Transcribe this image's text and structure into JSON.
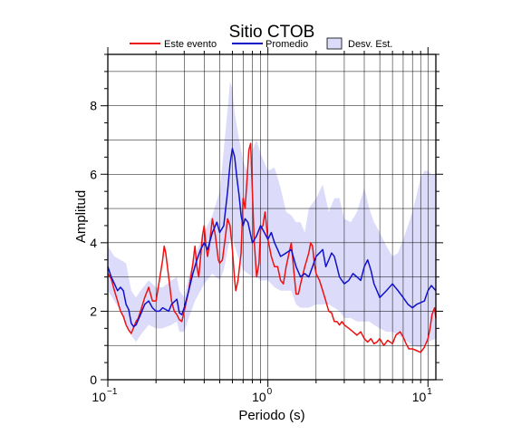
{
  "colors": {
    "event": "#ee1111",
    "mean": "#1111cc",
    "band_fill": "#dcdcfa",
    "grid": "#000000",
    "background": "#ffffff"
  },
  "chart_data": {
    "type": "line",
    "title": "Sitio CTOB",
    "xlabel": "Periodo (s)",
    "ylabel": "Amplitud",
    "x_scale": "log",
    "xlim": [
      0.1,
      11.2
    ],
    "ylim": [
      0,
      9.5
    ],
    "x_ticks": [
      {
        "value": 0.1,
        "base": "10",
        "exp": "−1"
      },
      {
        "value": 1,
        "base": "10",
        "exp": "0"
      },
      {
        "value": 10,
        "base": "10",
        "exp": "1"
      }
    ],
    "y_ticks": [
      0,
      2,
      4,
      6,
      8
    ],
    "y_tick_labels": [
      "0",
      "2",
      "4",
      "6",
      "8"
    ],
    "grid": true,
    "legend_position": "top",
    "legend": [
      {
        "label": "Este evento",
        "kind": "line",
        "color": "#ee1111"
      },
      {
        "label": "Promedio",
        "kind": "line",
        "color": "#1111cc"
      },
      {
        "label": "Desv. Est.",
        "kind": "box",
        "color": "#dcdcfa"
      }
    ],
    "series": [
      {
        "name": "Este evento",
        "color": "#ee1111",
        "points": [
          [
            0.1,
            3.1
          ],
          [
            0.105,
            2.95
          ],
          [
            0.11,
            2.6
          ],
          [
            0.115,
            2.3
          ],
          [
            0.12,
            2.0
          ],
          [
            0.125,
            1.85
          ],
          [
            0.13,
            1.6
          ],
          [
            0.135,
            1.45
          ],
          [
            0.14,
            1.35
          ],
          [
            0.15,
            1.7
          ],
          [
            0.155,
            1.8
          ],
          [
            0.16,
            2.0
          ],
          [
            0.17,
            2.4
          ],
          [
            0.18,
            2.7
          ],
          [
            0.19,
            2.3
          ],
          [
            0.2,
            2.3
          ],
          [
            0.21,
            2.9
          ],
          [
            0.22,
            3.5
          ],
          [
            0.225,
            3.9
          ],
          [
            0.23,
            3.7
          ],
          [
            0.24,
            3.0
          ],
          [
            0.25,
            2.3
          ],
          [
            0.26,
            2.0
          ],
          [
            0.27,
            1.9
          ],
          [
            0.28,
            1.75
          ],
          [
            0.29,
            1.7
          ],
          [
            0.3,
            2.0
          ],
          [
            0.32,
            2.6
          ],
          [
            0.34,
            3.4
          ],
          [
            0.35,
            3.9
          ],
          [
            0.36,
            3.3
          ],
          [
            0.37,
            3.0
          ],
          [
            0.38,
            3.6
          ],
          [
            0.39,
            4.2
          ],
          [
            0.4,
            4.5
          ],
          [
            0.41,
            3.9
          ],
          [
            0.42,
            3.6
          ],
          [
            0.43,
            3.9
          ],
          [
            0.45,
            4.7
          ],
          [
            0.47,
            4.2
          ],
          [
            0.49,
            3.5
          ],
          [
            0.5,
            3.4
          ],
          [
            0.52,
            3.5
          ],
          [
            0.54,
            4.1
          ],
          [
            0.56,
            4.7
          ],
          [
            0.58,
            4.5
          ],
          [
            0.6,
            3.8
          ],
          [
            0.62,
            2.9
          ],
          [
            0.63,
            2.6
          ],
          [
            0.65,
            2.9
          ],
          [
            0.68,
            3.7
          ],
          [
            0.7,
            5.3
          ],
          [
            0.72,
            5.0
          ],
          [
            0.74,
            5.8
          ],
          [
            0.76,
            6.7
          ],
          [
            0.78,
            6.9
          ],
          [
            0.8,
            5.5
          ],
          [
            0.82,
            4.1
          ],
          [
            0.85,
            3.0
          ],
          [
            0.88,
            3.4
          ],
          [
            0.9,
            4.4
          ],
          [
            0.93,
            4.5
          ],
          [
            0.96,
            4.9
          ],
          [
            1.0,
            4.1
          ],
          [
            1.05,
            3.6
          ],
          [
            1.1,
            3.3
          ],
          [
            1.15,
            3.3
          ],
          [
            1.2,
            2.9
          ],
          [
            1.25,
            2.8
          ],
          [
            1.3,
            3.3
          ],
          [
            1.4,
            4.0
          ],
          [
            1.45,
            3.2
          ],
          [
            1.5,
            2.5
          ],
          [
            1.55,
            2.5
          ],
          [
            1.6,
            2.8
          ],
          [
            1.7,
            3.3
          ],
          [
            1.8,
            3.7
          ],
          [
            1.85,
            4.0
          ],
          [
            1.9,
            3.9
          ],
          [
            1.95,
            3.4
          ],
          [
            2.0,
            3.1
          ],
          [
            2.1,
            2.9
          ],
          [
            2.2,
            2.6
          ],
          [
            2.3,
            2.3
          ],
          [
            2.4,
            2.0
          ],
          [
            2.5,
            1.95
          ],
          [
            2.6,
            1.7
          ],
          [
            2.7,
            1.7
          ],
          [
            2.8,
            1.6
          ],
          [
            2.9,
            1.7
          ],
          [
            3.0,
            1.6
          ],
          [
            3.2,
            1.5
          ],
          [
            3.4,
            1.4
          ],
          [
            3.6,
            1.3
          ],
          [
            3.8,
            1.4
          ],
          [
            4.0,
            1.2
          ],
          [
            4.2,
            1.1
          ],
          [
            4.4,
            1.2
          ],
          [
            4.6,
            1.05
          ],
          [
            4.8,
            1.1
          ],
          [
            5.0,
            1.2
          ],
          [
            5.3,
            1.0
          ],
          [
            5.6,
            1.15
          ],
          [
            6.0,
            1.05
          ],
          [
            6.3,
            1.3
          ],
          [
            6.7,
            1.4
          ],
          [
            7.0,
            1.25
          ],
          [
            7.3,
            1.05
          ],
          [
            7.6,
            0.9
          ],
          [
            8.0,
            0.9
          ],
          [
            8.5,
            0.85
          ],
          [
            9.0,
            0.8
          ],
          [
            9.5,
            0.95
          ],
          [
            10.0,
            1.2
          ],
          [
            10.3,
            1.5
          ],
          [
            10.6,
            1.9
          ],
          [
            11.0,
            2.1
          ],
          [
            11.2,
            1.8
          ]
        ]
      },
      {
        "name": "Promedio",
        "color": "#1111cc",
        "points": [
          [
            0.1,
            3.3
          ],
          [
            0.105,
            3.0
          ],
          [
            0.11,
            2.8
          ],
          [
            0.115,
            2.6
          ],
          [
            0.12,
            2.7
          ],
          [
            0.125,
            2.6
          ],
          [
            0.13,
            2.2
          ],
          [
            0.135,
            2.05
          ],
          [
            0.14,
            1.65
          ],
          [
            0.145,
            1.55
          ],
          [
            0.15,
            1.6
          ],
          [
            0.16,
            1.9
          ],
          [
            0.17,
            2.2
          ],
          [
            0.18,
            2.3
          ],
          [
            0.19,
            2.1
          ],
          [
            0.2,
            2.0
          ],
          [
            0.21,
            2.0
          ],
          [
            0.22,
            2.1
          ],
          [
            0.23,
            2.05
          ],
          [
            0.24,
            2.0
          ],
          [
            0.25,
            2.2
          ],
          [
            0.27,
            2.35
          ],
          [
            0.28,
            1.95
          ],
          [
            0.29,
            1.9
          ],
          [
            0.3,
            2.1
          ],
          [
            0.32,
            2.6
          ],
          [
            0.34,
            3.1
          ],
          [
            0.36,
            3.5
          ],
          [
            0.38,
            3.8
          ],
          [
            0.4,
            4.0
          ],
          [
            0.42,
            3.8
          ],
          [
            0.45,
            4.3
          ],
          [
            0.48,
            4.6
          ],
          [
            0.5,
            4.3
          ],
          [
            0.53,
            4.5
          ],
          [
            0.56,
            5.5
          ],
          [
            0.58,
            6.3
          ],
          [
            0.6,
            6.75
          ],
          [
            0.62,
            6.5
          ],
          [
            0.64,
            5.9
          ],
          [
            0.66,
            5.4
          ],
          [
            0.68,
            4.8
          ],
          [
            0.7,
            4.5
          ],
          [
            0.72,
            4.7
          ],
          [
            0.75,
            4.6
          ],
          [
            0.8,
            4.0
          ],
          [
            0.85,
            4.2
          ],
          [
            0.9,
            4.5
          ],
          [
            0.95,
            4.3
          ],
          [
            1.0,
            4.1
          ],
          [
            1.05,
            4.3
          ],
          [
            1.1,
            4.0
          ],
          [
            1.15,
            3.8
          ],
          [
            1.2,
            3.6
          ],
          [
            1.3,
            3.7
          ],
          [
            1.4,
            3.8
          ],
          [
            1.5,
            3.3
          ],
          [
            1.6,
            3.0
          ],
          [
            1.7,
            3.1
          ],
          [
            1.8,
            3.0
          ],
          [
            1.9,
            3.3
          ],
          [
            2.0,
            3.6
          ],
          [
            2.1,
            3.7
          ],
          [
            2.2,
            3.8
          ],
          [
            2.3,
            3.3
          ],
          [
            2.4,
            3.5
          ],
          [
            2.5,
            3.7
          ],
          [
            2.6,
            3.6
          ],
          [
            2.7,
            3.3
          ],
          [
            2.8,
            3.0
          ],
          [
            3.0,
            2.8
          ],
          [
            3.2,
            2.9
          ],
          [
            3.4,
            3.1
          ],
          [
            3.6,
            3.0
          ],
          [
            3.8,
            2.9
          ],
          [
            4.0,
            3.3
          ],
          [
            4.2,
            3.5
          ],
          [
            4.4,
            3.2
          ],
          [
            4.6,
            2.8
          ],
          [
            4.8,
            2.6
          ],
          [
            5.0,
            2.4
          ],
          [
            5.5,
            2.6
          ],
          [
            6.0,
            2.8
          ],
          [
            6.5,
            2.6
          ],
          [
            7.0,
            2.4
          ],
          [
            7.5,
            2.2
          ],
          [
            8.0,
            2.1
          ],
          [
            8.5,
            2.2
          ],
          [
            9.0,
            2.25
          ],
          [
            9.5,
            2.3
          ],
          [
            10.0,
            2.6
          ],
          [
            10.5,
            2.75
          ],
          [
            11.2,
            2.6
          ]
        ]
      }
    ],
    "band": {
      "name": "Desv. Est.",
      "x": [
        0.1,
        0.11,
        0.12,
        0.13,
        0.14,
        0.15,
        0.16,
        0.18,
        0.2,
        0.22,
        0.25,
        0.27,
        0.28,
        0.3,
        0.32,
        0.35,
        0.4,
        0.45,
        0.5,
        0.53,
        0.56,
        0.58,
        0.6,
        0.62,
        0.65,
        0.7,
        0.75,
        0.8,
        0.85,
        0.9,
        1.0,
        1.1,
        1.2,
        1.3,
        1.4,
        1.5,
        1.6,
        1.7,
        1.8,
        2.0,
        2.2,
        2.4,
        2.6,
        2.8,
        3.0,
        3.3,
        3.6,
        4.0,
        4.3,
        4.6,
        5.0,
        5.5,
        6.0,
        6.5,
        7.0,
        7.5,
        8.0,
        8.5,
        9.0,
        9.5,
        10.0,
        10.5,
        11.2
      ],
      "upper": [
        3.9,
        3.6,
        3.5,
        3.4,
        2.6,
        2.4,
        2.6,
        2.9,
        2.7,
        2.7,
        2.9,
        3.0,
        2.6,
        2.4,
        3.0,
        3.6,
        4.3,
        4.8,
        5.5,
        6.7,
        7.9,
        8.7,
        8.5,
        7.8,
        7.2,
        6.4,
        6.0,
        6.7,
        7.0,
        6.6,
        6.1,
        6.2,
        5.6,
        4.9,
        4.8,
        4.6,
        4.6,
        4.3,
        5.0,
        5.3,
        5.7,
        4.9,
        5.3,
        5.3,
        4.7,
        4.6,
        4.9,
        5.6,
        5.0,
        4.6,
        4.3,
        3.9,
        3.6,
        3.7,
        4.1,
        4.5,
        4.9,
        5.4,
        5.9,
        6.1,
        6.1,
        6.0,
        6.0
      ],
      "lower": [
        2.6,
        2.3,
        2.0,
        1.6,
        1.3,
        1.1,
        1.3,
        1.6,
        1.5,
        1.5,
        1.6,
        1.7,
        1.4,
        1.4,
        1.8,
        2.3,
        2.8,
        3.1,
        2.9,
        3.2,
        3.8,
        4.1,
        4.2,
        3.9,
        3.6,
        3.2,
        3.1,
        3.0,
        3.0,
        2.9,
        2.9,
        2.7,
        2.6,
        2.6,
        2.6,
        2.2,
        2.1,
        2.1,
        2.1,
        2.2,
        2.2,
        2.2,
        2.1,
        2.0,
        1.8,
        1.8,
        1.7,
        1.7,
        1.7,
        1.6,
        1.5,
        1.4,
        1.4,
        1.3,
        1.2,
        1.1,
        1.0,
        0.95,
        0.95,
        1.0,
        1.1,
        1.15,
        1.2
      ]
    }
  }
}
